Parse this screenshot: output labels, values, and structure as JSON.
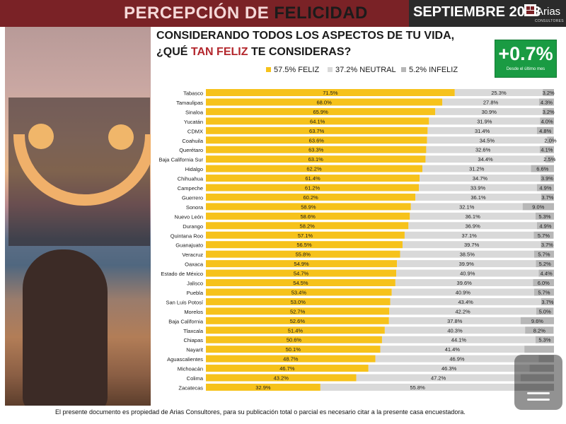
{
  "header": {
    "title_part1": "PERCEPCIÓN DE",
    "title_part2": "FELICIDAD",
    "date": "SEPTIEMBRE 2023",
    "logo_text": "Arias",
    "logo_sub": "CONSULTORES"
  },
  "question": {
    "line1": "CONSIDERANDO TODOS LOS ASPECTOS DE TU VIDA,",
    "line2_pre": "¿QUÉ",
    "line2_accent": "TAN FELIZ",
    "line2_post": "TE CONSIDERAS?"
  },
  "badge": {
    "value": "+0.7%",
    "note": "Desde el último mes"
  },
  "footer": {
    "text": "El presente documento es propiedad de Arias Consultores, para su publicación total o parcial es necesario citar a la presente casa encuestadora."
  },
  "colors": {
    "feliz": "#f6c21b",
    "neutral": "#d9d9d9",
    "infeliz": "#b7b7b7",
    "header": "#7a2226",
    "badge": "#1a9b43"
  },
  "icons": [
    "smiley-photo",
    "scroll-handle-icon",
    "arias-logo-icon"
  ],
  "chart_data": {
    "type": "bar",
    "orientation": "horizontal-stacked",
    "legend": [
      {
        "label": "57.5% FELIZ",
        "color": "#f6c21b"
      },
      {
        "label": "37.2% NEUTRAL",
        "color": "#d9d9d9"
      },
      {
        "label": "5.2% INFELIZ",
        "color": "#b7b7b7"
      }
    ],
    "legend_position": "top",
    "categories": [
      "Tabasco",
      "Tamaulipas",
      "Sinaloa",
      "Yucatán",
      "CDMX",
      "Coahuila",
      "Querétaro",
      "Baja California Sur",
      "Hidalgo",
      "Chihuahua",
      "Campeche",
      "Guerrero",
      "Sonora",
      "Nuevo León",
      "Durango",
      "Quintana Roo",
      "Guanajuato",
      "Veracruz",
      "Oaxaca",
      "Estado de México",
      "Jalisco",
      "Puebla",
      "San Luis Potosí",
      "Morelos",
      "Baja California",
      "Tlaxcala",
      "Chiapas",
      "Nayarit",
      "Aguascalientes",
      "Michoacán",
      "Colima",
      "Zacatecas"
    ],
    "series": [
      {
        "name": "FELIZ",
        "values": [
          71.5,
          68.0,
          65.9,
          64.1,
          63.7,
          63.6,
          63.3,
          63.1,
          62.2,
          61.4,
          61.2,
          60.2,
          58.9,
          58.6,
          58.2,
          57.1,
          56.5,
          55.8,
          54.9,
          54.7,
          54.5,
          53.4,
          53.0,
          52.7,
          52.6,
          51.4,
          50.6,
          50.1,
          48.7,
          46.7,
          43.2,
          32.9
        ]
      },
      {
        "name": "NEUTRAL",
        "values": [
          25.3,
          27.8,
          30.9,
          31.9,
          31.4,
          34.5,
          32.6,
          34.4,
          31.2,
          34.7,
          33.9,
          36.1,
          32.1,
          36.1,
          36.9,
          37.1,
          39.7,
          38.5,
          39.9,
          40.9,
          39.6,
          40.9,
          43.4,
          42.2,
          37.8,
          40.3,
          44.1,
          41.4,
          46.9,
          46.3,
          47.2,
          55.8
        ]
      },
      {
        "name": "INFELIZ",
        "values": [
          3.2,
          4.3,
          3.2,
          4.0,
          4.8,
          2.0,
          4.1,
          2.5,
          6.6,
          3.9,
          4.9,
          3.7,
          9.0,
          5.3,
          4.9,
          5.7,
          3.7,
          5.7,
          5.2,
          4.4,
          6.0,
          5.7,
          3.7,
          5.0,
          9.6,
          8.2,
          5.3,
          8.5,
          4.4,
          7.0,
          9.6,
          11.3
        ]
      }
    ],
    "labels": {
      "FELIZ": [
        "71.5%",
        "68.0%",
        "65.9%",
        "64.1%",
        "63.7%",
        "63.6%",
        "63.3%",
        "63.1%",
        "62.2%",
        "61.4%",
        "61.2%",
        "60.2%",
        "58.9%",
        "58.6%",
        "58.2%",
        "57.1%",
        "56.5%",
        "55.8%",
        "54.9%",
        "54.7%",
        "54.5%",
        "53.4%",
        "53.0%",
        "52.7%",
        "52.6%",
        "51.4%",
        "50.6%",
        "50.1%",
        "48.7%",
        "46.7%",
        "43.2%",
        "32.9%"
      ],
      "NEUTRAL": [
        "25.3%",
        "27.8%",
        "30.9%",
        "31.9%",
        "31.4%",
        "34.5%",
        "32.6%",
        "34.4%",
        "31.2%",
        "34.7%",
        "33.9%",
        "36.1%",
        "32.1%",
        "36.1%",
        "36.9%",
        "37.1%",
        "39.7%",
        "38.5%",
        "39.9%",
        "40.9%",
        "39.6%",
        "40.9%",
        "43.4%",
        "42.2%",
        "37.8%",
        "40.3%",
        "44.1%",
        "41.4%",
        "46.9%",
        "46.3%",
        "47.2%",
        "55.8%"
      ],
      "INFELIZ": [
        "3.2%",
        "4.3%",
        "3.2%",
        "4.0%",
        "4.8%",
        "2.0%",
        "4.1%",
        "2.5%",
        "6.6%",
        "3.9%",
        "4.9%",
        "3.7%",
        "9.0%",
        "5.3%",
        "4.9%",
        "5.7%",
        "3.7%",
        "5.7%",
        "5.2%",
        "4.4%",
        "6.0%",
        "5.7%",
        "3.7%",
        "5.0%",
        "9.6%",
        "8.2%",
        "5.3%",
        "",
        "",
        "",
        "",
        ""
      ]
    },
    "xlim": [
      0,
      100
    ],
    "grid": false
  }
}
